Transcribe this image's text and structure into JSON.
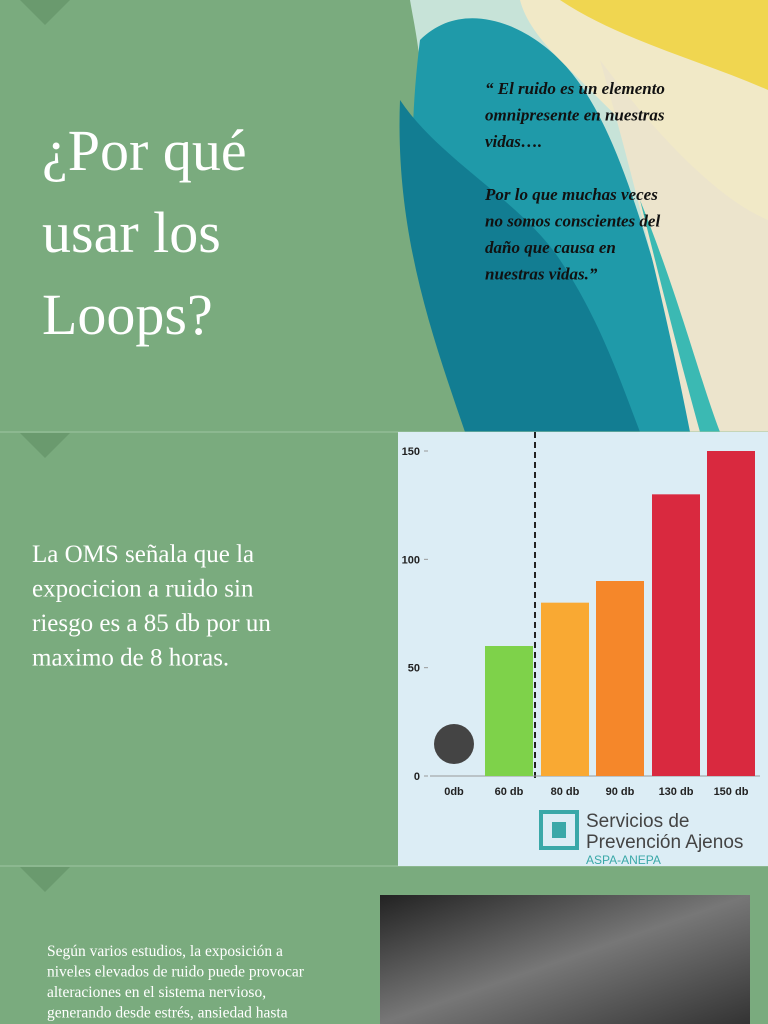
{
  "slides": [
    {
      "title": [
        "¿Por qué",
        "usar los",
        "Loops?"
      ],
      "quote": [
        [
          "“ El ruido es un elemento",
          "omnipresente en nuestras",
          "vidas…."
        ],
        [
          "Por lo que muchas veces",
          "no somos conscientes del",
          "daño que causa en",
          "nuestras vidas.”"
        ]
      ]
    },
    {
      "text": [
        "La OMS señala que la",
        "expocicion a ruido sin",
        "riesgo es a 85 db por un",
        "maximo de 8 horas."
      ],
      "logo": {
        "line1": "Servicios de",
        "line2": "Prevención Ajenos",
        "line3": "ASPA-ANEPA"
      }
    },
    {
      "text": [
        "Según varios estudios, la exposición a",
        "niveles elevados de ruido puede provocar",
        "alteraciones en el sistema nervioso,",
        "generando desde estrés, ansiedad hasta"
      ]
    }
  ],
  "chart_data": {
    "type": "bar",
    "categories": [
      "0db",
      "60 db",
      "80 db",
      "90 db",
      "130 db",
      "150 db"
    ],
    "values": [
      0,
      60,
      80,
      90,
      130,
      150
    ],
    "colors": [
      "#7ed24a",
      "#7ed24a",
      "#f9a933",
      "#f5872a",
      "#d9293f",
      "#d9293f"
    ],
    "ylim": [
      0,
      150
    ],
    "yticks": [
      0,
      50,
      100,
      150
    ],
    "grid": false
  }
}
